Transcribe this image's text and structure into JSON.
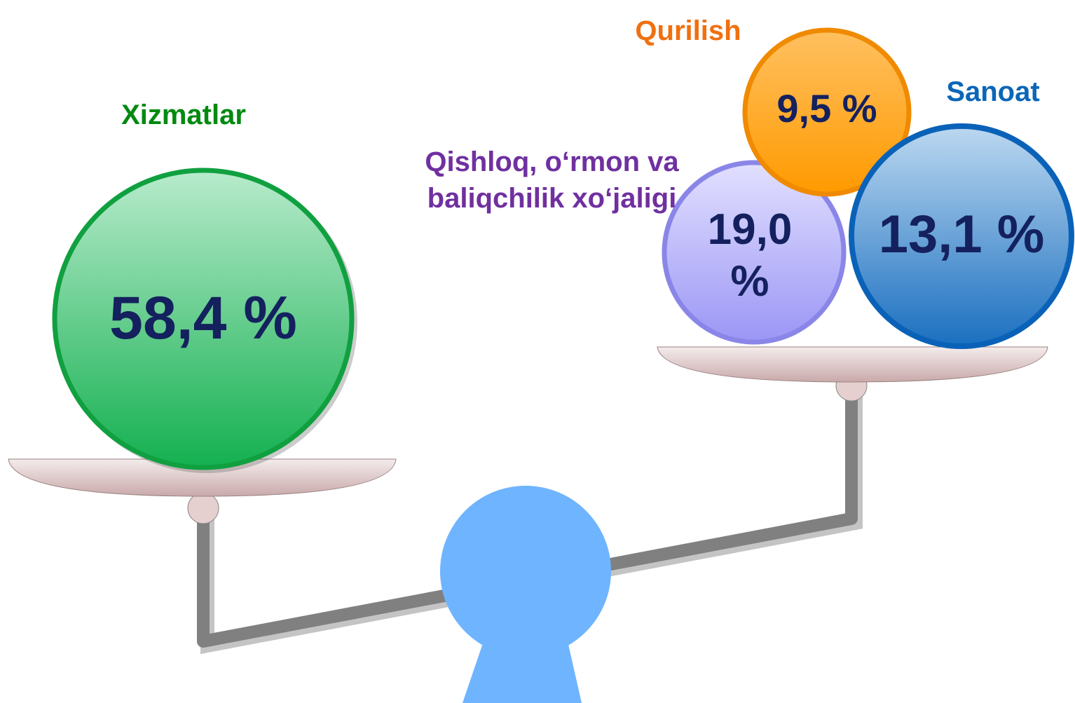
{
  "nodes": [
    {
      "label": "Xizmatlar",
      "value": "58,4 %"
    },
    {
      "label": "Qurilish",
      "value": "9,5 %"
    },
    {
      "label": "Qishloq, o‘rmon va baliqchilik xo‘jaligi",
      "value": "19,0 %"
    },
    {
      "label": "Sanoat",
      "value": "13,1 %"
    }
  ]
}
